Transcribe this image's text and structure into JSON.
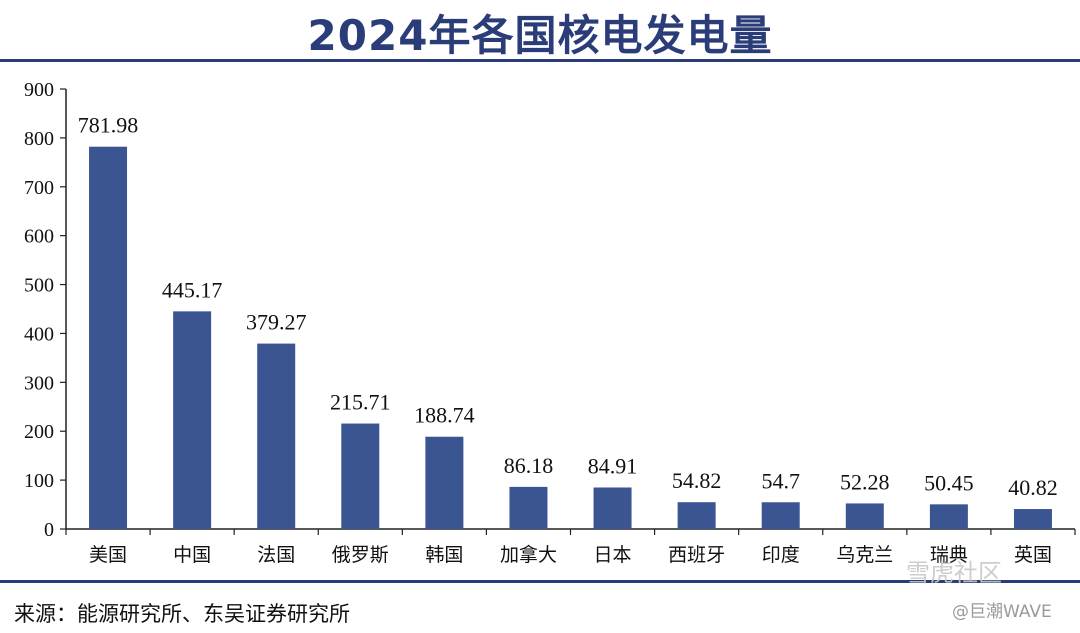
{
  "title": "2024年各国核电发电量",
  "source": "来源：能源研究所、东吴证券研究所",
  "watermark": {
    "main": "雪虎社区",
    "handle": "@巨潮WAVE"
  },
  "colors": {
    "bar": "#3a5591",
    "title": "#2b3d78",
    "rule": "#2b3d78"
  },
  "chart_data": {
    "type": "bar",
    "title": "2024年各国核电发电量",
    "xlabel": "",
    "ylabel": "",
    "categories": [
      "美国",
      "中国",
      "法国",
      "俄罗斯",
      "韩国",
      "加拿大",
      "日本",
      "西班牙",
      "印度",
      "乌克兰",
      "瑞典",
      "英国"
    ],
    "values": [
      781.98,
      445.17,
      379.27,
      215.71,
      188.74,
      86.18,
      84.91,
      54.82,
      54.7,
      52.28,
      50.45,
      40.82
    ],
    "value_labels": [
      "781.98",
      "445.17",
      "379.27",
      "215.71",
      "188.74",
      "86.18",
      "84.91",
      "54.82",
      "54.7",
      "52.28",
      "50.45",
      "40.82"
    ],
    "ylim": [
      0,
      900
    ],
    "yticks": [
      0,
      100,
      200,
      300,
      400,
      500,
      600,
      700,
      800,
      900
    ],
    "grid": false,
    "legend": "none"
  }
}
